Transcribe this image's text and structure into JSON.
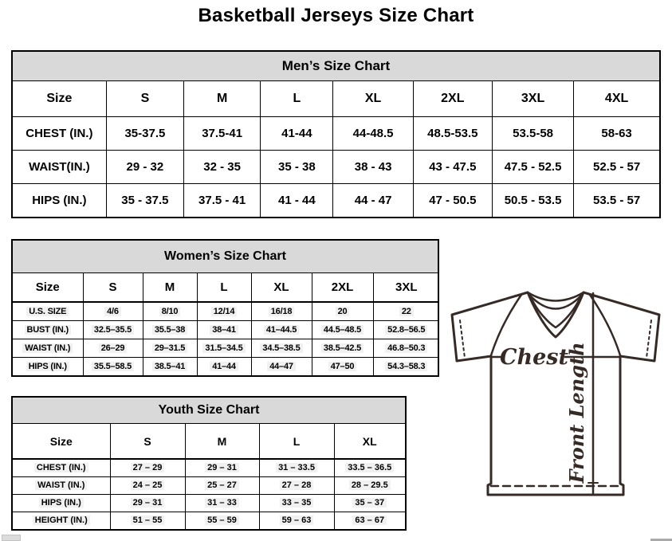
{
  "page": {
    "title": "Basketball Jerseys Size Chart"
  },
  "mens": {
    "title": "Men’s Size Chart",
    "columns": [
      "Size",
      "S",
      "M",
      "L",
      "XL",
      "2XL",
      "3XL",
      "4XL"
    ],
    "rows": [
      {
        "label": "CHEST (IN.)",
        "values": [
          "35-37.5",
          "37.5-41",
          "41-44",
          "44-48.5",
          "48.5-53.5",
          "53.5-58",
          "58-63"
        ]
      },
      {
        "label": "WAIST(IN.)",
        "values": [
          "29 - 32",
          "32 - 35",
          "35 - 38",
          "38 - 43",
          "43 - 47.5",
          "47.5 - 52.5",
          "52.5 - 57"
        ]
      },
      {
        "label": "HIPS (IN.)",
        "values": [
          "35 - 37.5",
          "37.5 - 41",
          "41 - 44",
          "44 - 47",
          "47 - 50.5",
          "50.5 - 53.5",
          "53.5 - 57"
        ]
      }
    ]
  },
  "womens": {
    "title": "Women’s Size Chart",
    "columns": [
      "Size",
      "S",
      "M",
      "L",
      "XL",
      "2XL",
      "3XL"
    ],
    "rows": [
      {
        "label": "U.S. SIZE",
        "values": [
          "4/6",
          "8/10",
          "12/14",
          "16/18",
          "20",
          "22"
        ]
      },
      {
        "label": "BUST (IN.)",
        "values": [
          "32.5–35.5",
          "35.5–38",
          "38–41",
          "41–44.5",
          "44.5–48.5",
          "52.8–56.5"
        ]
      },
      {
        "label": "WAIST (IN.)",
        "values": [
          "26–29",
          "29–31.5",
          "31.5–34.5",
          "34.5–38.5",
          "38.5–42.5",
          "46.8–50.3"
        ]
      },
      {
        "label": "HIPS (IN.)",
        "values": [
          "35.5–58.5",
          "38.5–41",
          "41–44",
          "44–47",
          "47–50",
          "54.3–58.3"
        ]
      }
    ]
  },
  "youth": {
    "title": "Youth Size Chart",
    "columns": [
      "Size",
      "S",
      "M",
      "L",
      "XL"
    ],
    "rows": [
      {
        "label": "CHEST (IN.)",
        "values": [
          "27 – 29",
          "29 – 31",
          "31 – 33.5",
          "33.5 – 36.5"
        ]
      },
      {
        "label": "WAIST (IN.)",
        "values": [
          "24 – 25",
          "25 – 27",
          "27 – 28",
          "28 – 29.5"
        ]
      },
      {
        "label": "HIPS (IN.)",
        "values": [
          "29 – 31",
          "31 – 33",
          "33 – 35",
          "35 – 37"
        ]
      },
      {
        "label": "HEIGHT (IN.)",
        "values": [
          "51 – 55",
          "55 – 59",
          "59 – 63",
          "63 – 67"
        ]
      }
    ]
  },
  "diagram": {
    "chest_label": "Chest",
    "front_length_label": "Front Length",
    "line_color": "#362a26"
  },
  "colors": {
    "header_bg": "#d9d9d9",
    "border": "#000000",
    "highlight": "#f1f1f1"
  }
}
